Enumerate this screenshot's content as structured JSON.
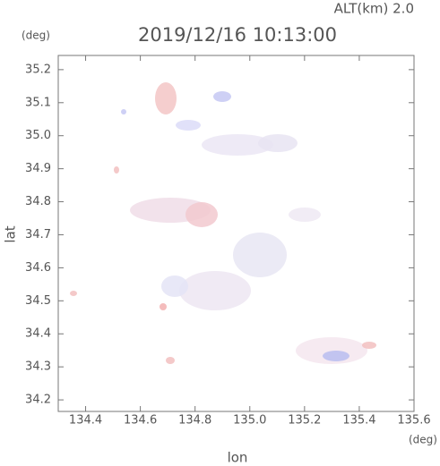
{
  "chart_data": {
    "type": "map",
    "title": "2019/12/16 10:13:00",
    "altitude_label": "ALT(km)  2.0",
    "x_label": "lon",
    "x_unit": "(deg)",
    "y_label": "lat",
    "y_unit": "(deg)",
    "xlim": [
      134.3,
      135.6
    ],
    "xticks": [
      134.4,
      134.6,
      134.8,
      {
        "value": 135.0,
        "label": "135.0"
      },
      135.2,
      135.4,
      135.6
    ],
    "ylim": [
      34.165,
      35.243
    ],
    "yticks": [
      34.2,
      34.3,
      34.4,
      34.5,
      34.6,
      34.7,
      34.8,
      34.9,
      {
        "value": 35.0,
        "label": "35.0"
      },
      35.1,
      35.2
    ]
  }
}
